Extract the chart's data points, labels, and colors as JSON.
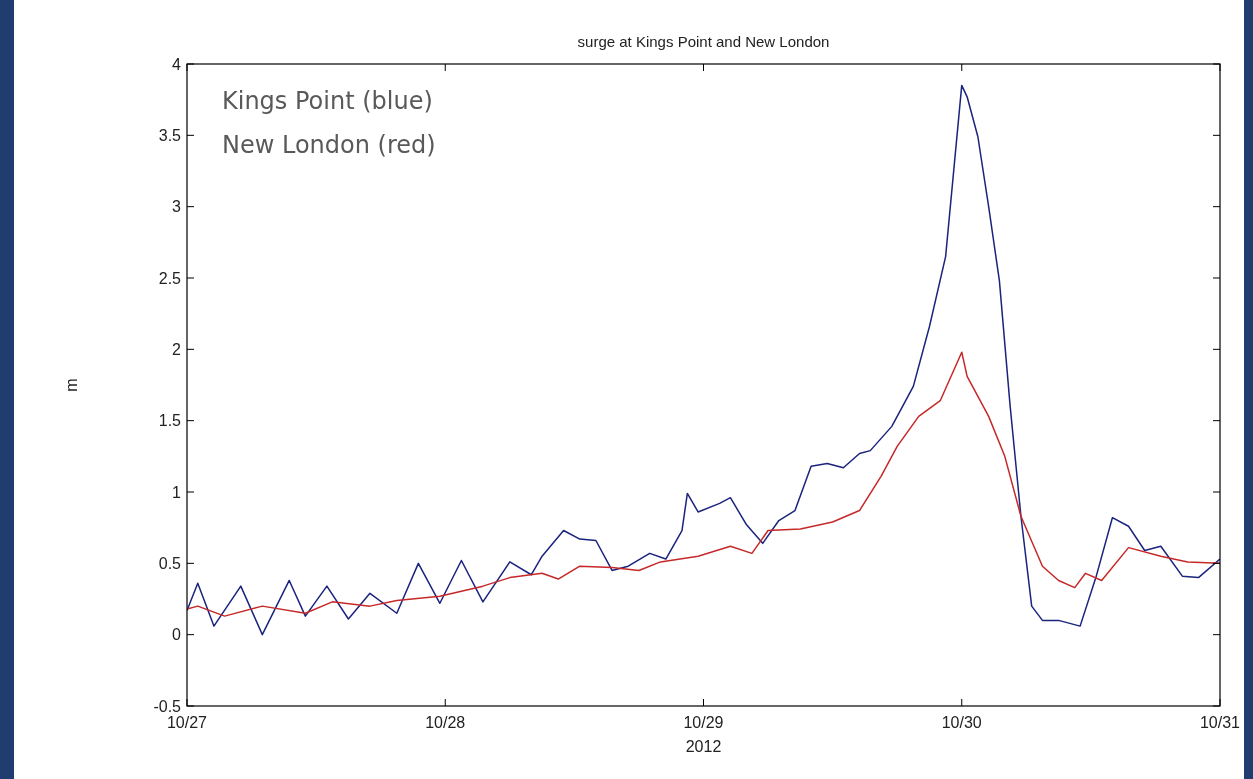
{
  "chart_data": {
    "type": "line",
    "title": "surge at Kings Point and New London",
    "xlabel": "2012",
    "ylabel": "m",
    "annotations": [
      "Kings Point (blue)",
      "New London (red)"
    ],
    "xlim": [
      "2012-10-27T00:00",
      "2012-10-31T00:00"
    ],
    "xticks": [
      {
        "value": "2012-10-27T00:00",
        "label": "10/27"
      },
      {
        "value": "2012-10-28T00:00",
        "label": "10/28"
      },
      {
        "value": "2012-10-29T00:00",
        "label": "10/29"
      },
      {
        "value": "2012-10-30T00:00",
        "label": "10/30"
      },
      {
        "value": "2012-10-31T00:00",
        "label": "10/31"
      }
    ],
    "ylim": [
      -0.5,
      4
    ],
    "yticks": [
      -0.5,
      0,
      0.5,
      1,
      1.5,
      2,
      2.5,
      3,
      3.5,
      4
    ],
    "grid": false,
    "line_style": "solid",
    "series": [
      {
        "color": "#1a237e",
        "x": [
          "2012-10-27T00:00",
          "2012-10-27T01:00",
          "2012-10-27T02:30",
          "2012-10-27T05:00",
          "2012-10-27T07:00",
          "2012-10-27T09:30",
          "2012-10-27T11:00",
          "2012-10-27T13:00",
          "2012-10-27T15:00",
          "2012-10-27T17:00",
          "2012-10-27T19:30",
          "2012-10-27T21:30",
          "2012-10-27T23:30",
          "2012-10-28T01:30",
          "2012-10-28T03:30",
          "2012-10-28T06:00",
          "2012-10-28T08:00",
          "2012-10-28T09:00",
          "2012-10-28T11:00",
          "2012-10-28T12:30",
          "2012-10-28T14:00",
          "2012-10-28T15:30",
          "2012-10-28T17:00",
          "2012-10-28T19:00",
          "2012-10-28T20:30",
          "2012-10-28T22:00",
          "2012-10-28T22:30",
          "2012-10-28T23:30",
          "2012-10-29T01:30",
          "2012-10-29T02:30",
          "2012-10-29T04:00",
          "2012-10-29T05:30",
          "2012-10-29T07:00",
          "2012-10-29T08:30",
          "2012-10-29T10:00",
          "2012-10-29T11:30",
          "2012-10-29T13:00",
          "2012-10-29T14:30",
          "2012-10-29T15:30",
          "2012-10-29T17:30",
          "2012-10-29T19:30",
          "2012-10-29T21:00",
          "2012-10-29T22:30",
          "2012-10-30T00:00",
          "2012-10-30T00:30",
          "2012-10-30T01:30",
          "2012-10-30T02:30",
          "2012-10-30T03:30",
          "2012-10-30T04:30",
          "2012-10-30T05:30",
          "2012-10-30T06:30",
          "2012-10-30T07:30",
          "2012-10-30T09:00",
          "2012-10-30T11:00",
          "2012-10-30T12:30",
          "2012-10-30T14:00",
          "2012-10-30T15:30",
          "2012-10-30T17:00",
          "2012-10-30T18:30",
          "2012-10-30T20:30",
          "2012-10-30T22:00",
          "2012-10-31T00:00"
        ],
        "values": [
          0.17,
          0.36,
          0.06,
          0.34,
          0.0,
          0.38,
          0.13,
          0.34,
          0.11,
          0.29,
          0.15,
          0.5,
          0.22,
          0.52,
          0.23,
          0.51,
          0.42,
          0.55,
          0.73,
          0.67,
          0.66,
          0.45,
          0.48,
          0.57,
          0.53,
          0.73,
          0.99,
          0.86,
          0.92,
          0.96,
          0.77,
          0.64,
          0.8,
          0.87,
          1.18,
          1.2,
          1.17,
          1.27,
          1.29,
          1.46,
          1.74,
          2.16,
          2.65,
          3.85,
          3.77,
          3.49,
          3.0,
          2.48,
          1.6,
          0.83,
          0.2,
          0.1,
          0.1,
          0.06,
          0.41,
          0.82,
          0.76,
          0.59,
          0.62,
          0.41,
          0.4,
          0.53
        ]
      },
      {
        "color": "#c62828",
        "x": [
          "2012-10-27T00:00",
          "2012-10-27T01:00",
          "2012-10-27T03:30",
          "2012-10-27T07:00",
          "2012-10-27T11:00",
          "2012-10-27T13:30",
          "2012-10-27T17:00",
          "2012-10-27T19:30",
          "2012-10-27T23:30",
          "2012-10-28T03:30",
          "2012-10-28T06:00",
          "2012-10-28T09:00",
          "2012-10-28T10:30",
          "2012-10-28T12:30",
          "2012-10-28T15:30",
          "2012-10-28T18:00",
          "2012-10-28T20:00",
          "2012-10-28T23:30",
          "2012-10-29T02:30",
          "2012-10-29T04:30",
          "2012-10-29T06:00",
          "2012-10-29T09:00",
          "2012-10-29T12:00",
          "2012-10-29T14:30",
          "2012-10-29T16:30",
          "2012-10-29T18:00",
          "2012-10-29T20:00",
          "2012-10-29T22:00",
          "2012-10-30T00:00",
          "2012-10-30T00:30",
          "2012-10-30T02:30",
          "2012-10-30T04:00",
          "2012-10-30T05:30",
          "2012-10-30T07:30",
          "2012-10-30T09:00",
          "2012-10-30T10:30",
          "2012-10-30T11:30",
          "2012-10-30T13:00",
          "2012-10-30T15:30",
          "2012-10-30T18:30",
          "2012-10-30T21:00",
          "2012-10-31T00:00"
        ],
        "values": [
          0.18,
          0.2,
          0.13,
          0.2,
          0.15,
          0.23,
          0.2,
          0.24,
          0.27,
          0.34,
          0.4,
          0.43,
          0.39,
          0.48,
          0.47,
          0.45,
          0.51,
          0.55,
          0.62,
          0.57,
          0.73,
          0.74,
          0.79,
          0.87,
          1.11,
          1.32,
          1.53,
          1.64,
          1.98,
          1.81,
          1.53,
          1.25,
          0.83,
          0.48,
          0.38,
          0.33,
          0.43,
          0.38,
          0.61,
          0.55,
          0.51,
          0.5
        ]
      }
    ]
  }
}
